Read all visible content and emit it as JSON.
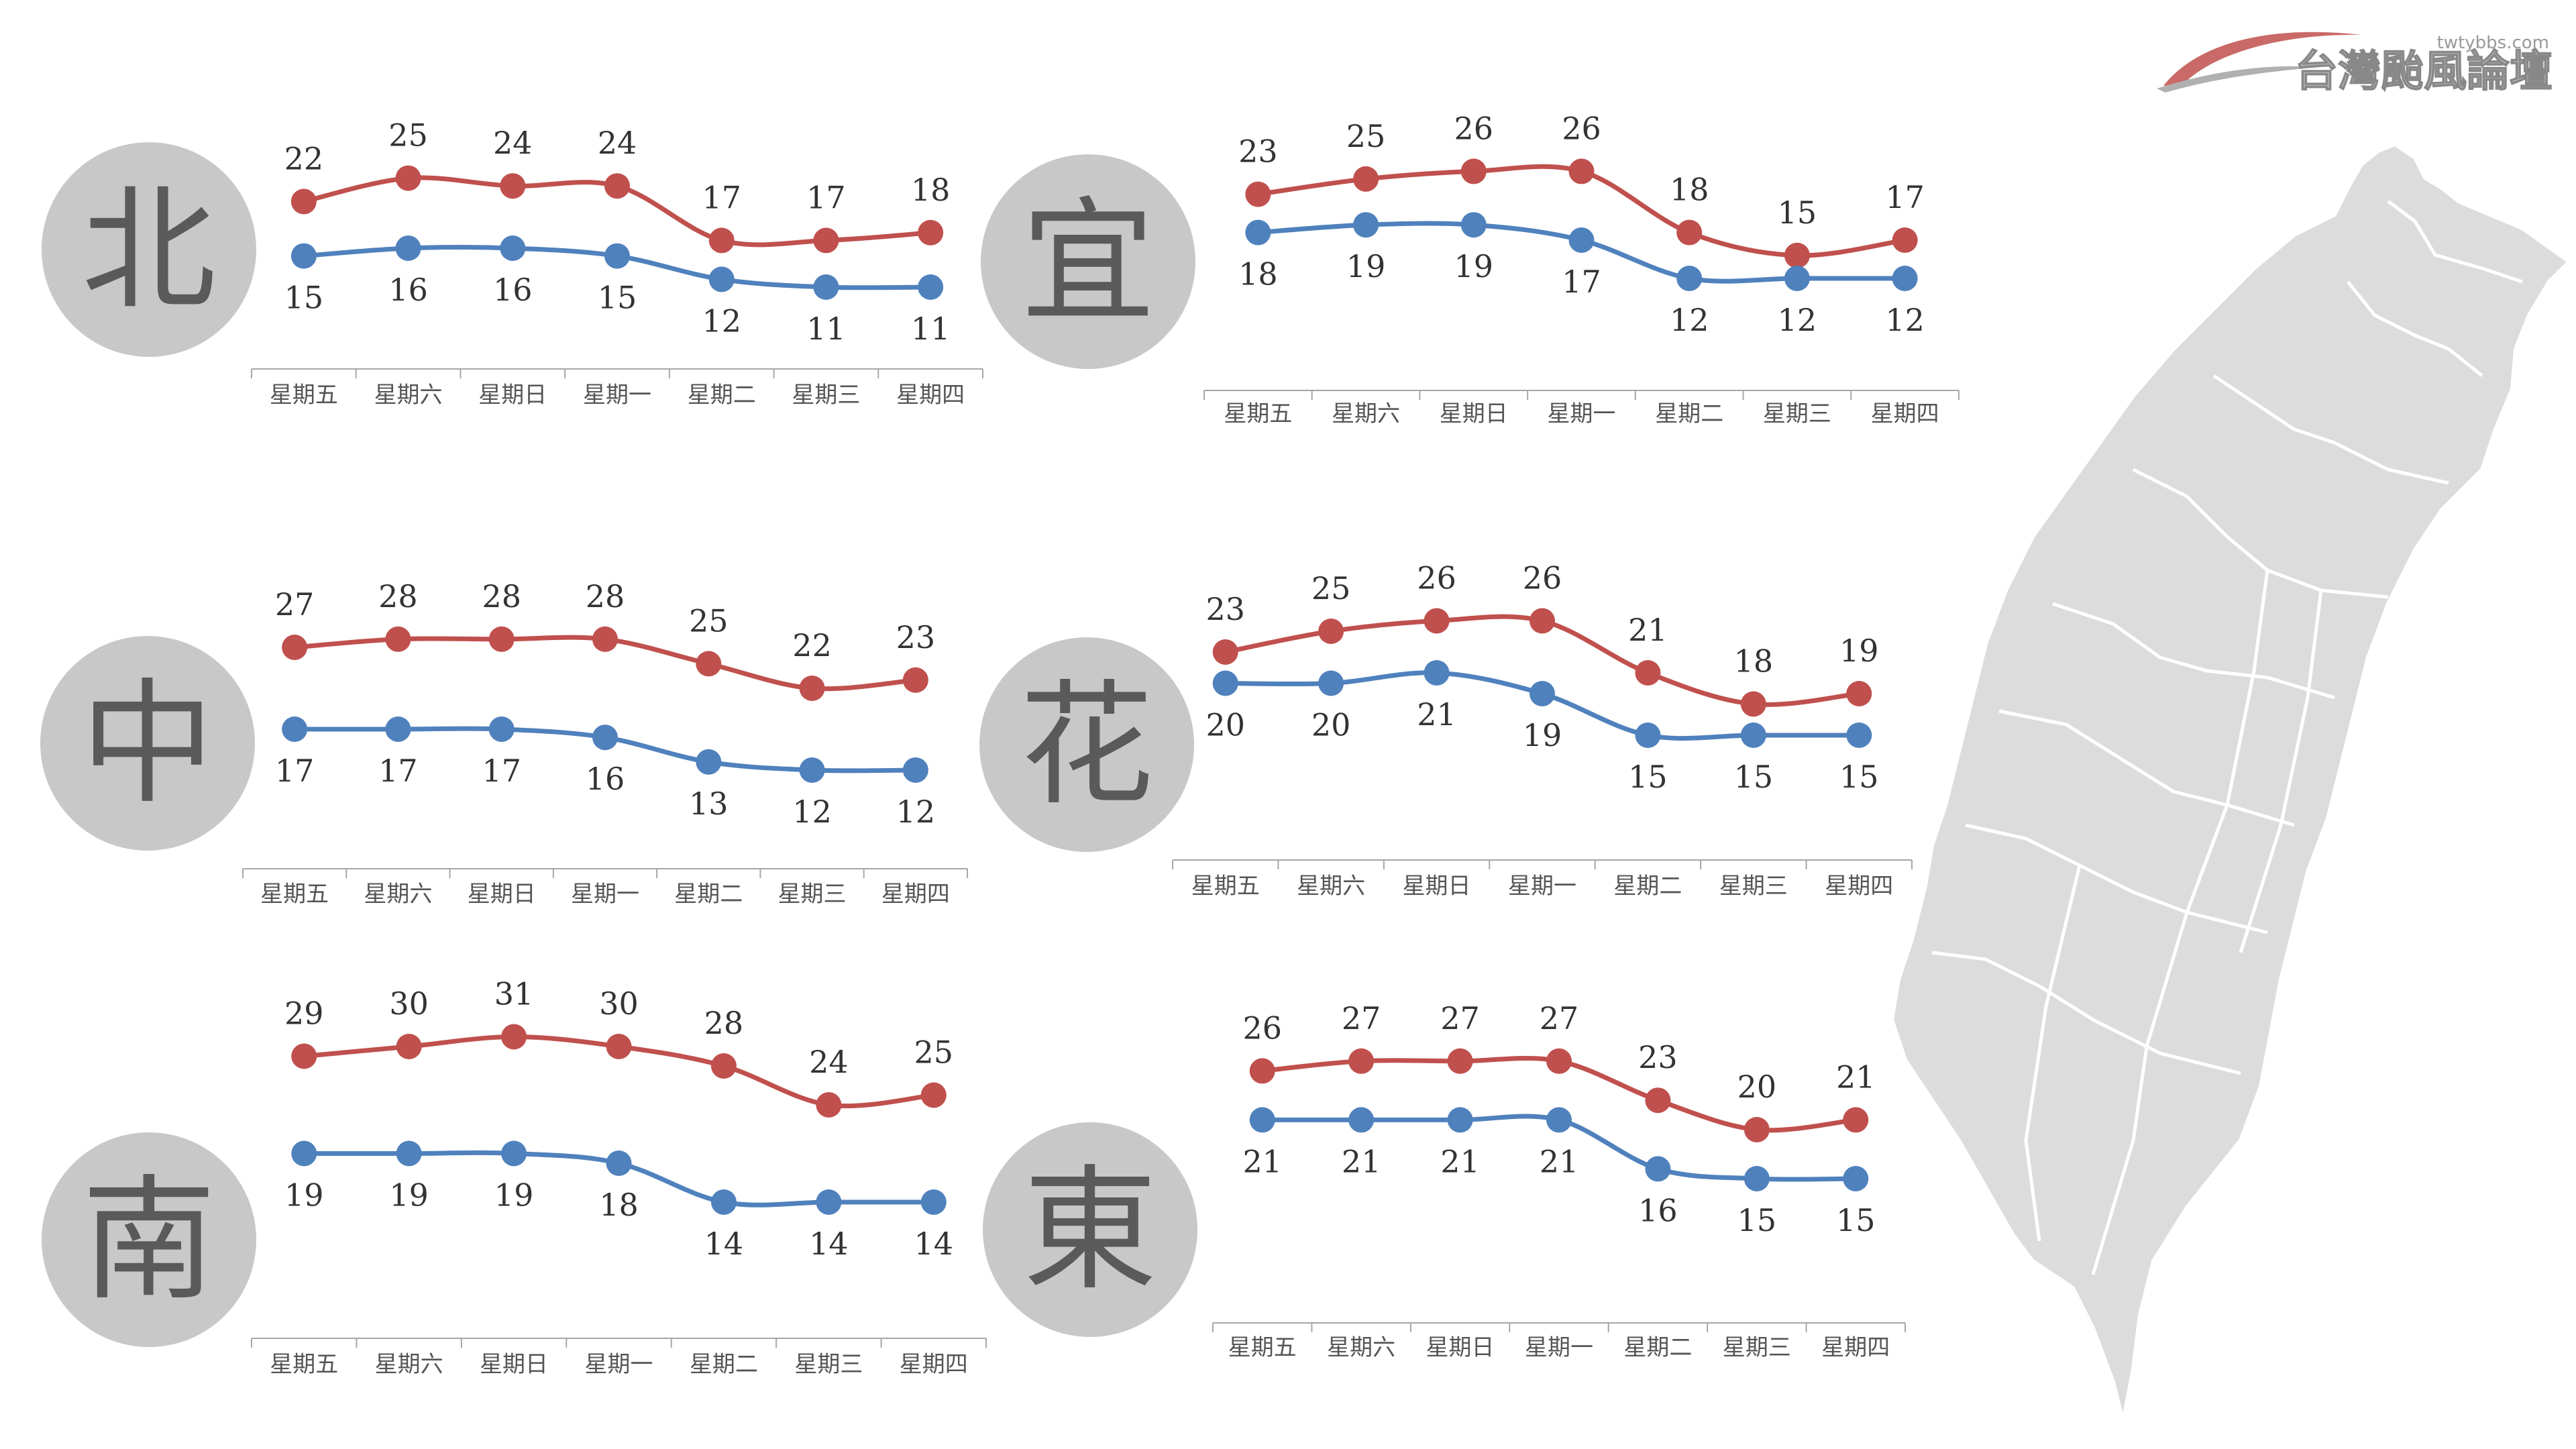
{
  "logo": {
    "url_text": "twtybbs.com",
    "name": "台灣颱風論壇"
  },
  "colors": {
    "high": "#c0504d",
    "low": "#4f81bd",
    "circle": "#c8c8c8",
    "circle_text": "#5a5a5a",
    "map_fill": "#dcdcdc",
    "axis": "#a6a6a6"
  },
  "chart_data": [
    {
      "type": "line",
      "title": "北",
      "categories": [
        "星期五",
        "星期六",
        "星期日",
        "星期一",
        "星期二",
        "星期三",
        "星期四"
      ],
      "series": [
        {
          "values": [
            22,
            25,
            24,
            24,
            17,
            17,
            18
          ]
        },
        {
          "values": [
            15,
            16,
            16,
            15,
            12,
            11,
            11
          ]
        }
      ]
    },
    {
      "type": "line",
      "title": "宜",
      "categories": [
        "星期五",
        "星期六",
        "星期日",
        "星期一",
        "星期二",
        "星期三",
        "星期四"
      ],
      "series": [
        {
          "values": [
            23,
            25,
            26,
            26,
            18,
            15,
            17
          ]
        },
        {
          "values": [
            18,
            19,
            19,
            17,
            12,
            12,
            12
          ]
        }
      ]
    },
    {
      "type": "line",
      "title": "中",
      "categories": [
        "星期五",
        "星期六",
        "星期日",
        "星期一",
        "星期二",
        "星期三",
        "星期四"
      ],
      "series": [
        {
          "values": [
            27,
            28,
            28,
            28,
            25,
            22,
            23
          ]
        },
        {
          "values": [
            17,
            17,
            17,
            16,
            13,
            12,
            12
          ]
        }
      ]
    },
    {
      "type": "line",
      "title": "花",
      "categories": [
        "星期五",
        "星期六",
        "星期日",
        "星期一",
        "星期二",
        "星期三",
        "星期四"
      ],
      "series": [
        {
          "values": [
            23,
            25,
            26,
            26,
            21,
            18,
            19
          ]
        },
        {
          "values": [
            20,
            20,
            21,
            19,
            15,
            15,
            15
          ]
        }
      ]
    },
    {
      "type": "line",
      "title": "南",
      "categories": [
        "星期五",
        "星期六",
        "星期日",
        "星期一",
        "星期二",
        "星期三",
        "星期四"
      ],
      "series": [
        {
          "values": [
            29,
            30,
            31,
            30,
            28,
            24,
            25
          ]
        },
        {
          "values": [
            19,
            19,
            19,
            18,
            14,
            14,
            14
          ]
        }
      ]
    },
    {
      "type": "line",
      "title": "東",
      "categories": [
        "星期五",
        "星期六",
        "星期日",
        "星期一",
        "星期二",
        "星期三",
        "星期四"
      ],
      "series": [
        {
          "values": [
            26,
            27,
            27,
            27,
            23,
            20,
            21
          ]
        },
        {
          "values": [
            21,
            21,
            21,
            21,
            16,
            15,
            15
          ]
        }
      ]
    }
  ]
}
